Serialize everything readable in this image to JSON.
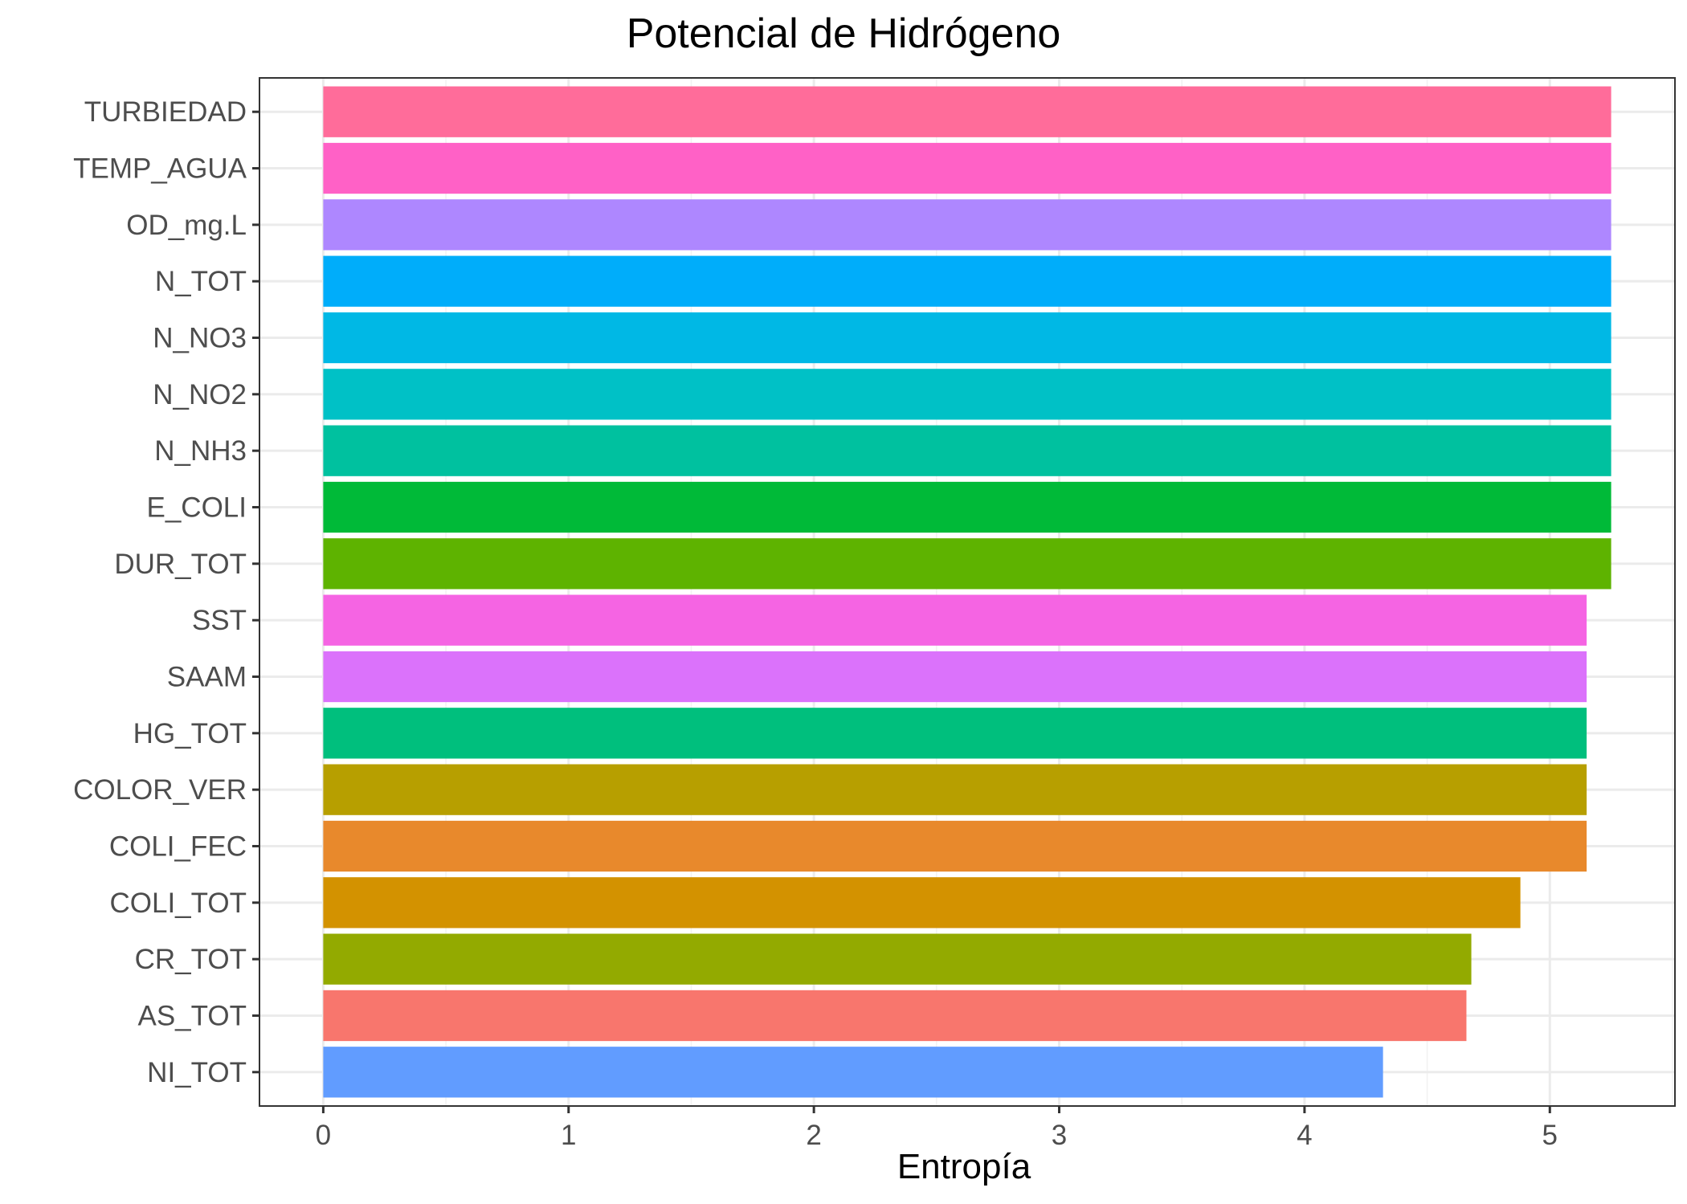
{
  "chart_data": {
    "type": "bar",
    "orientation": "horizontal",
    "title": "Potencial de Hidrógeno",
    "xlabel": "Entropía",
    "ylabel": "",
    "categories": [
      "TURBIEDAD",
      "TEMP_AGUA",
      "OD_mg.L",
      "N_TOT",
      "N_NO3",
      "N_NO2",
      "N_NH3",
      "E_COLI",
      "DUR_TOT",
      "SST",
      "SAAM",
      "HG_TOT",
      "COLOR_VER",
      "COLI_FEC",
      "COLI_TOT",
      "CR_TOT",
      "AS_TOT",
      "NI_TOT"
    ],
    "values": [
      5.25,
      5.25,
      5.25,
      5.25,
      5.25,
      5.25,
      5.25,
      5.25,
      5.25,
      5.15,
      5.15,
      5.15,
      5.15,
      5.15,
      4.88,
      4.68,
      4.66,
      4.32
    ],
    "colors": [
      "#FF6C9A",
      "#FF61C6",
      "#AE87FF",
      "#00ADFA",
      "#00B8E5",
      "#00C1C6",
      "#00C19F",
      "#00BA38",
      "#5EB300",
      "#F564E3",
      "#DB72FB",
      "#00BF7D",
      "#B79F00",
      "#E8892C",
      "#D39200",
      "#93AA00",
      "#F8766D",
      "#619CFF"
    ],
    "xlim": [
      -0.26,
      5.51
    ],
    "xticks": [
      0,
      1,
      2,
      3,
      4,
      5
    ],
    "grid": true,
    "legend": "none"
  }
}
